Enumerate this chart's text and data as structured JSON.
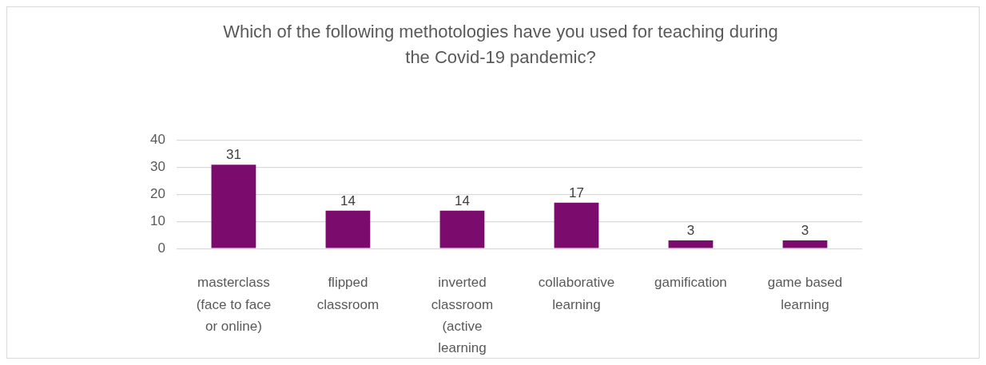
{
  "chart_data": {
    "type": "bar",
    "title": "Which of the following methotologies have you used for teaching during the Covid-19 pandemic?",
    "categories": [
      "masterclass (face to face or online)",
      "flipped classroom",
      "inverted classroom (active learning",
      "collaborative learning",
      "gamification",
      "game based learning"
    ],
    "values": [
      31,
      14,
      14,
      17,
      3,
      3
    ],
    "color": "#7b0c6e",
    "ylim": [
      0,
      40
    ],
    "yticks": [
      0,
      10,
      20,
      30,
      40
    ],
    "grid": "y",
    "data_labels": true
  }
}
